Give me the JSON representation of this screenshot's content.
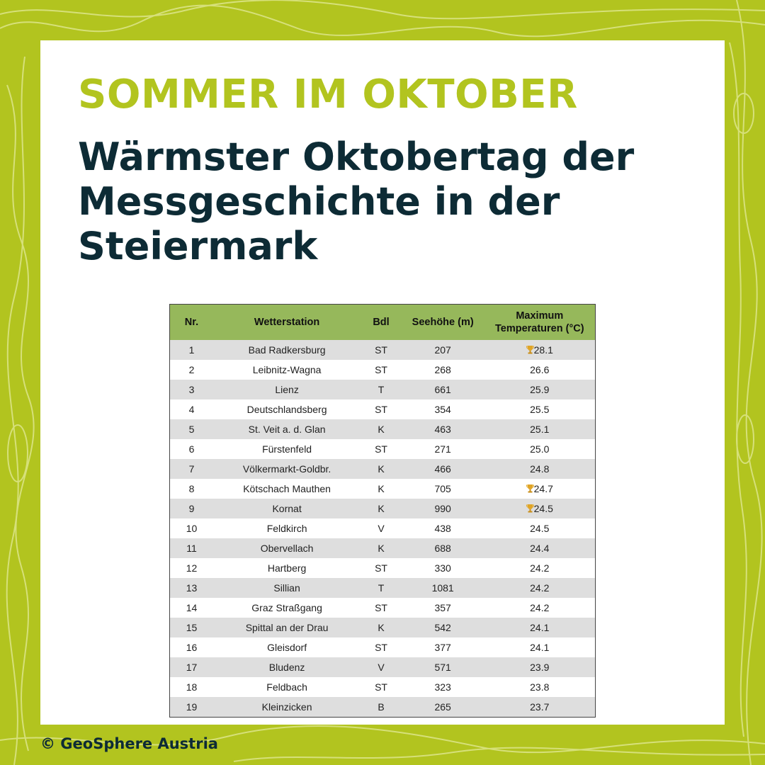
{
  "header": {
    "kicker": "SOMMER IM OKTOBER",
    "title_lines": [
      "Wärmster Oktobertag der",
      "Messgeschichte in der",
      "Steiermark"
    ]
  },
  "table": {
    "columns": [
      "Nr.",
      "Wetterstation",
      "Bdl",
      "Seehöhe (m)",
      "Maximum Temperaturen (°C)"
    ],
    "rows": [
      [
        "1",
        "Bad Radkersburg",
        "ST",
        "207",
        "28.1"
      ],
      [
        "2",
        "Leibnitz-Wagna",
        "ST",
        "268",
        "26.6"
      ],
      [
        "3",
        "Lienz",
        "T",
        "661",
        "25.9"
      ],
      [
        "4",
        "Deutschlandsberg",
        "ST",
        "354",
        "25.5"
      ],
      [
        "5",
        "St. Veit a. d. Glan",
        "K",
        "463",
        "25.1"
      ],
      [
        "6",
        "Fürstenfeld",
        "ST",
        "271",
        "25.0"
      ],
      [
        "7",
        "Völkermarkt-Goldbr.",
        "K",
        "466",
        "24.8"
      ],
      [
        "8",
        "Kötschach Mauthen",
        "K",
        "705",
        "24.7"
      ],
      [
        "9",
        "Kornat",
        "K",
        "990",
        "24.5"
      ],
      [
        "10",
        "Feldkirch",
        "V",
        "438",
        "24.5"
      ],
      [
        "11",
        "Obervellach",
        "K",
        "688",
        "24.4"
      ],
      [
        "12",
        "Hartberg",
        "ST",
        "330",
        "24.2"
      ],
      [
        "13",
        "Sillian",
        "T",
        "1081",
        "24.2"
      ],
      [
        "14",
        "Graz Straßgang",
        "ST",
        "357",
        "24.2"
      ],
      [
        "15",
        "Spittal an der Drau",
        "K",
        "542",
        "24.1"
      ],
      [
        "16",
        "Gleisdorf",
        "ST",
        "377",
        "24.1"
      ],
      [
        "17",
        "Bludenz",
        "V",
        "571",
        "23.9"
      ],
      [
        "18",
        "Feldbach",
        "ST",
        "323",
        "23.8"
      ],
      [
        "19",
        "Kleinzicken",
        "B",
        "265",
        "23.7"
      ]
    ]
  },
  "footer": {
    "copyright": "© GeoSphere Austria"
  }
}
